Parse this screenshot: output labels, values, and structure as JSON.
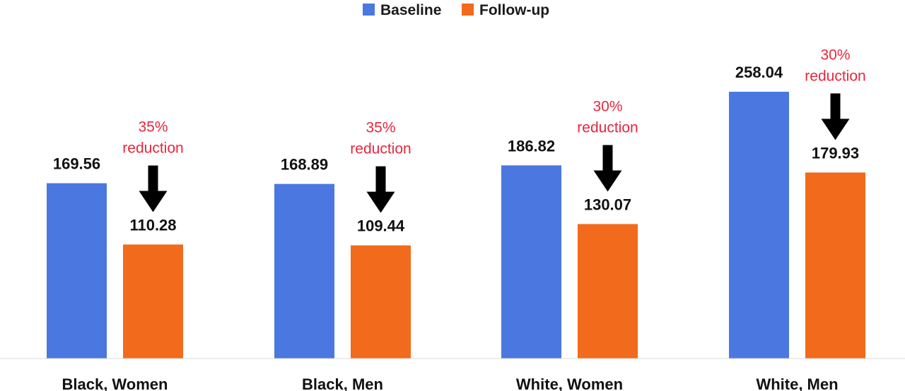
{
  "chart_data": {
    "type": "bar",
    "title": "",
    "xlabel": "",
    "ylabel": "",
    "ylim": [
      0,
      290
    ],
    "grid": false,
    "legend": "top-center",
    "categories": [
      "Black, Women",
      "Black, Men",
      "White, Women",
      "White, Men"
    ],
    "series": [
      {
        "name": "Baseline",
        "color": "#4a78e0",
        "values": [
          169.56,
          168.89,
          186.82,
          258.04
        ],
        "labels": [
          "169.56",
          "168.89",
          "186.82",
          "258.04"
        ]
      },
      {
        "name": "Follow-up",
        "color": "#f26a1b",
        "values": [
          110.28,
          109.44,
          130.07,
          179.93
        ],
        "labels": [
          "110.28",
          "109.44",
          "130.07",
          "179.93"
        ]
      }
    ],
    "annotations": [
      {
        "category": "Black, Women",
        "lines": [
          "35%",
          "reduction"
        ]
      },
      {
        "category": "Black, Men",
        "lines": [
          "35%",
          "reduction"
        ]
      },
      {
        "category": "White, Women",
        "lines": [
          "30%",
          "reduction"
        ]
      },
      {
        "category": "White, Men",
        "lines": [
          "30%",
          "reduction"
        ]
      }
    ],
    "annotation_color": "#e8263c",
    "arrow_color": "#000000"
  }
}
